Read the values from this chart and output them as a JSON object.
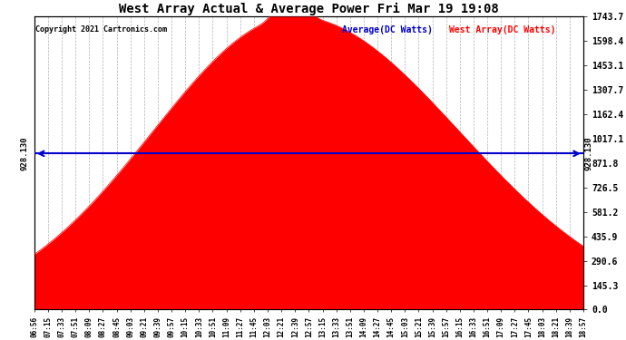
{
  "title": "West Array Actual & Average Power Fri Mar 19 19:08",
  "copyright": "Copyright 2021 Cartronics.com",
  "legend_average": "Average(DC Watts)",
  "legend_west": "West Array(DC Watts)",
  "average_value": 928.13,
  "ymax": 1743.7,
  "ymin": 0.0,
  "yticks": [
    0.0,
    145.3,
    290.6,
    435.9,
    581.2,
    726.5,
    871.8,
    1017.1,
    1162.4,
    1307.7,
    1453.1,
    1598.4,
    1743.7
  ],
  "background_color": "#ffffff",
  "fill_color": "#ff0000",
  "line_color": "#ff0000",
  "average_line_color": "#0000cc",
  "grid_color": "#aaaaaa",
  "title_color": "#000000",
  "xtick_labels": [
    "06:56",
    "07:15",
    "07:33",
    "07:51",
    "08:09",
    "08:27",
    "08:45",
    "09:03",
    "09:21",
    "09:39",
    "09:57",
    "10:15",
    "10:33",
    "10:51",
    "11:09",
    "11:27",
    "11:45",
    "12:03",
    "12:21",
    "12:39",
    "12:57",
    "13:15",
    "13:33",
    "13:51",
    "14:09",
    "14:27",
    "14:45",
    "15:03",
    "15:21",
    "15:39",
    "15:57",
    "16:15",
    "16:33",
    "16:51",
    "17:09",
    "17:27",
    "17:45",
    "18:03",
    "18:21",
    "18:39",
    "18:57"
  ],
  "n_points": 500,
  "peak_value": 1743.7,
  "avg_label": "928.130"
}
